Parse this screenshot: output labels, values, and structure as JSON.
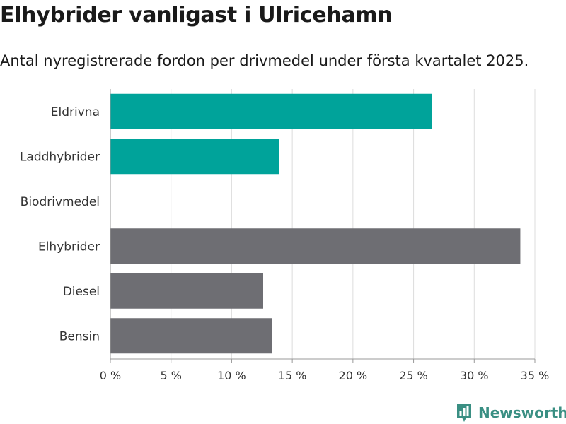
{
  "title": "Elhybrider vanligast i Ulricehamn",
  "subtitle": "Antal nyregistrerade fordon per drivmedel under första kvartalet 2025.",
  "brand": {
    "name": "Newsworthy",
    "color": "#3a8f83"
  },
  "colors": {
    "highlight": "#00a39a",
    "default": "#6e6e73",
    "grid": "#dddddd",
    "axis": "#999999"
  },
  "chart_data": {
    "type": "bar",
    "orientation": "horizontal",
    "title": "Elhybrider vanligast i Ulricehamn",
    "subtitle": "Antal nyregistrerade fordon per drivmedel under första kvartalet 2025.",
    "categories": [
      "Eldrivna",
      "Laddhybrider",
      "Biodrivmedel",
      "Elhybrider",
      "Diesel",
      "Bensin"
    ],
    "values": [
      26.5,
      13.9,
      0,
      33.8,
      12.6,
      13.3
    ],
    "unit": "%",
    "bar_colors": [
      "#00a39a",
      "#00a39a",
      "#00a39a",
      "#6e6e73",
      "#6e6e73",
      "#6e6e73"
    ],
    "xlim": [
      0,
      35
    ],
    "xticks": [
      0,
      5,
      10,
      15,
      20,
      25,
      30,
      35
    ],
    "xtick_labels": [
      "0 %",
      "5 %",
      "10 %",
      "15 %",
      "20 %",
      "25 %",
      "30 %",
      "35 %"
    ],
    "grid": true,
    "legend": "none"
  }
}
